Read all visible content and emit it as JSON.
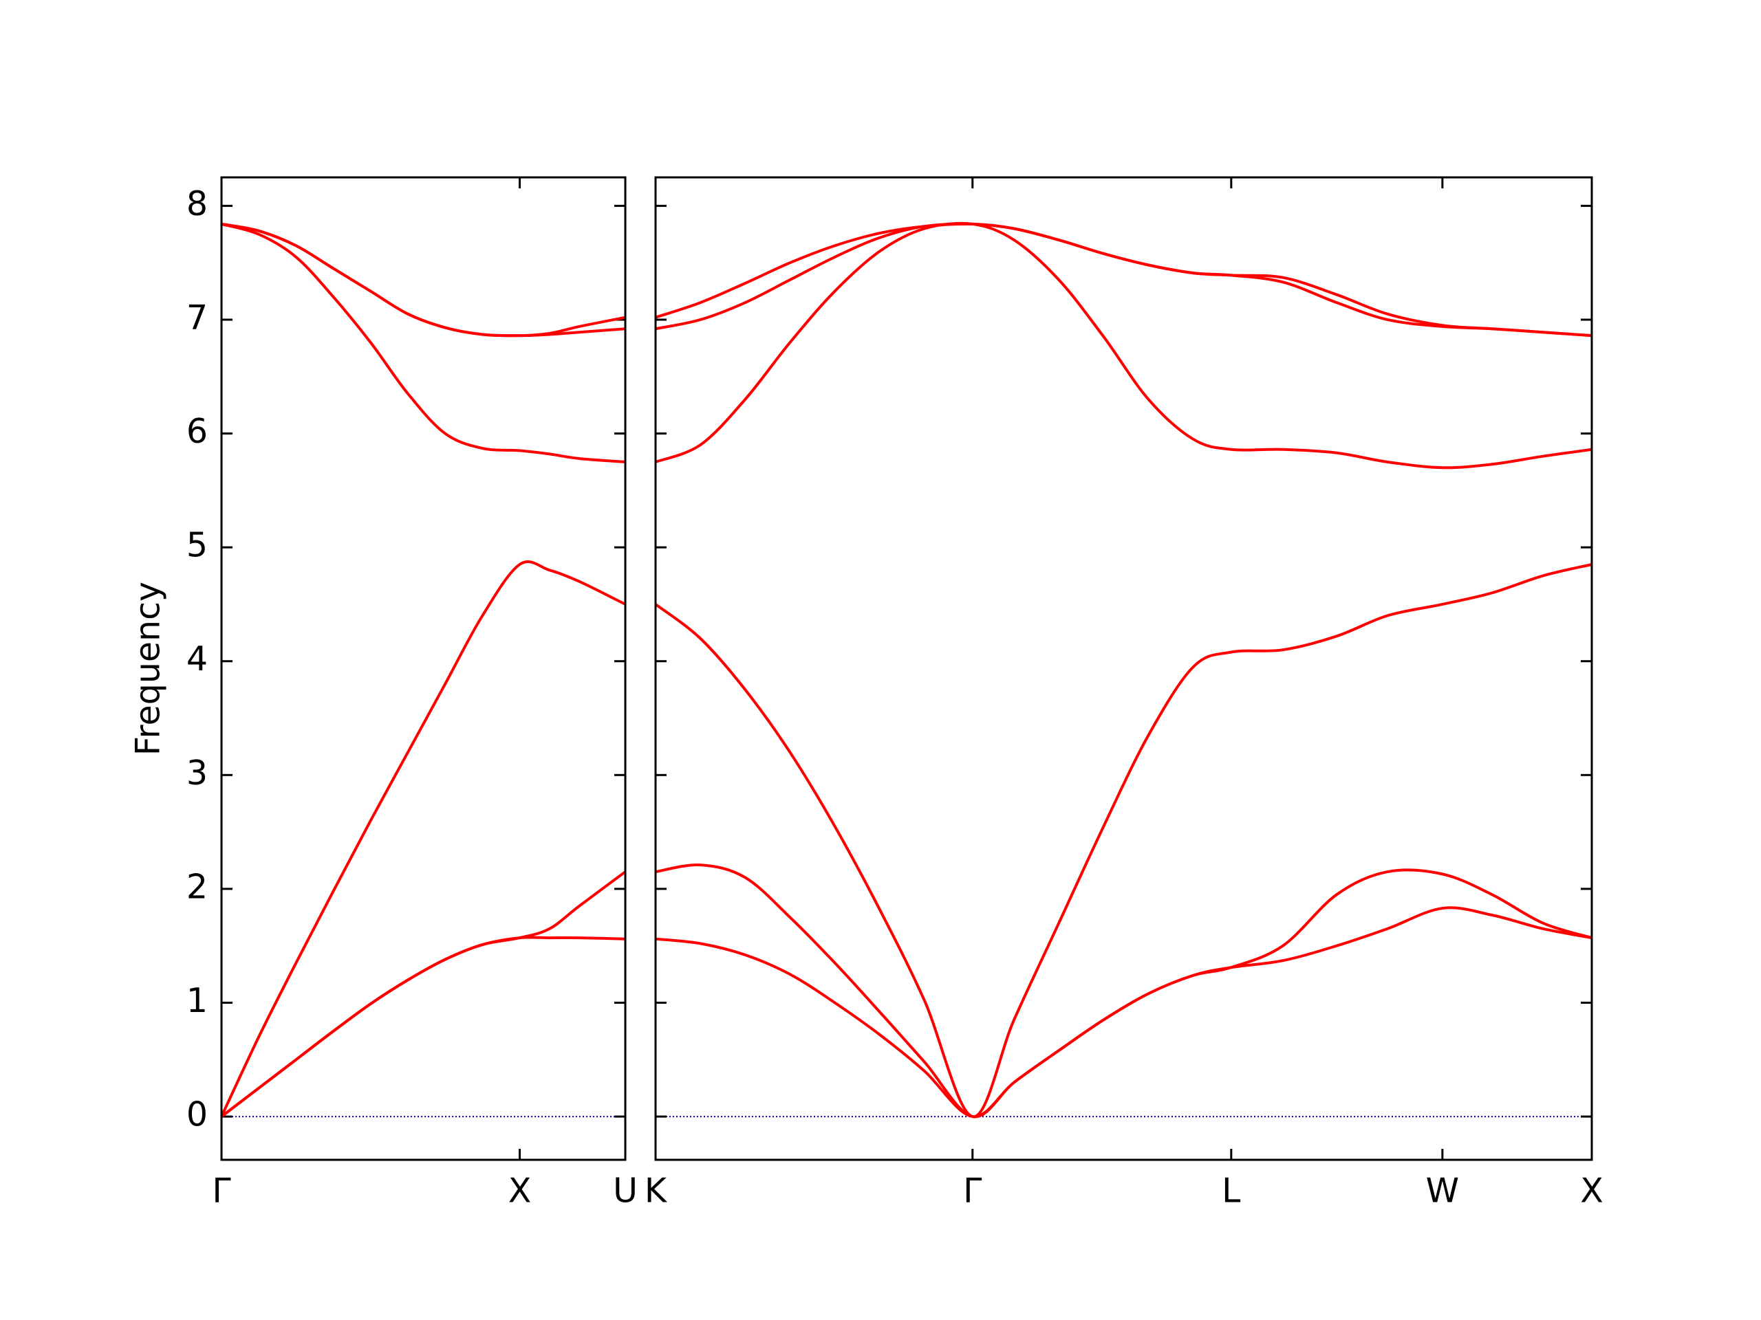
{
  "chart_data": [
    {
      "type": "line",
      "ylabel": "Frequency",
      "x": [
        0,
        0.125,
        0.25,
        0.375,
        0.5,
        0.625,
        0.75,
        0.875,
        1,
        1.1,
        1.2,
        1.354
      ],
      "series": [
        {
          "color": "#ff0000",
          "values": [
            0,
            0.25,
            0.5,
            0.75,
            0.99,
            1.2,
            1.38,
            1.51,
            1.57,
            1.57,
            1.57,
            1.56
          ]
        },
        {
          "color": "#ff0000",
          "values": [
            0,
            0.25,
            0.5,
            0.75,
            0.99,
            1.2,
            1.38,
            1.51,
            1.57,
            1.65,
            1.85,
            2.15
          ]
        },
        {
          "color": "#ff0000",
          "values": [
            0,
            0.7,
            1.35,
            1.98,
            2.6,
            3.2,
            3.8,
            4.4,
            4.85,
            4.8,
            4.7,
            4.5
          ]
        },
        {
          "color": "#ff0000",
          "values": [
            7.84,
            7.75,
            7.55,
            7.2,
            6.8,
            6.35,
            6.0,
            5.87,
            5.85,
            5.82,
            5.78,
            5.75
          ]
        },
        {
          "color": "#ff0000",
          "values": [
            7.84,
            7.78,
            7.65,
            7.45,
            7.25,
            7.05,
            6.93,
            6.87,
            6.86,
            6.87,
            6.89,
            6.92
          ]
        },
        {
          "color": "#ff0000",
          "values": [
            7.84,
            7.78,
            7.65,
            7.45,
            7.25,
            7.05,
            6.93,
            6.87,
            6.86,
            6.88,
            6.94,
            7.02
          ]
        }
      ],
      "xlim": [
        0,
        1.354
      ],
      "xticks": [
        {
          "value": 0,
          "label": "Γ"
        },
        {
          "value": 1,
          "label": "X"
        },
        {
          "value": 1.354,
          "label": "U"
        }
      ],
      "ylim": [
        -0.38,
        8.25
      ],
      "yticks": [
        0,
        1,
        2,
        3,
        4,
        5,
        6,
        7,
        8
      ],
      "ytick_labels": true,
      "zero_line": true,
      "zero_line_color": "#0000aa"
    },
    {
      "type": "line",
      "x": [
        0,
        0.15,
        0.3,
        0.45,
        0.6,
        0.75,
        0.9,
        1.061,
        1.2,
        1.35,
        1.5,
        1.65,
        1.8,
        1.927,
        2.1,
        2.28,
        2.45,
        2.634,
        2.8,
        2.97,
        3.134
      ],
      "series": [
        {
          "color": "#ff0000",
          "values": [
            1.56,
            1.52,
            1.42,
            1.25,
            1.0,
            0.72,
            0.4,
            0,
            0.3,
            0.58,
            0.85,
            1.08,
            1.24,
            1.31,
            1.37,
            1.5,
            1.65,
            1.83,
            1.77,
            1.65,
            1.57
          ]
        },
        {
          "color": "#ff0000",
          "values": [
            2.15,
            2.21,
            2.1,
            1.75,
            1.35,
            0.92,
            0.48,
            0,
            0.3,
            0.58,
            0.85,
            1.08,
            1.24,
            1.31,
            1.5,
            1.95,
            2.15,
            2.13,
            1.95,
            1.7,
            1.57
          ]
        },
        {
          "color": "#ff0000",
          "values": [
            4.5,
            4.2,
            3.75,
            3.2,
            2.55,
            1.82,
            1.02,
            0,
            0.85,
            1.7,
            2.55,
            3.35,
            3.95,
            4.08,
            4.1,
            4.22,
            4.4,
            4.5,
            4.6,
            4.75,
            4.85
          ]
        },
        {
          "color": "#ff0000",
          "values": [
            5.75,
            5.9,
            6.3,
            6.8,
            7.25,
            7.6,
            7.8,
            7.84,
            7.7,
            7.35,
            6.85,
            6.3,
            5.95,
            5.86,
            5.86,
            5.83,
            5.75,
            5.7,
            5.73,
            5.8,
            5.86
          ]
        },
        {
          "color": "#ff0000",
          "values": [
            6.92,
            7.0,
            7.15,
            7.35,
            7.55,
            7.72,
            7.82,
            7.84,
            7.8,
            7.7,
            7.58,
            7.48,
            7.41,
            7.39,
            7.33,
            7.15,
            7.0,
            6.94,
            6.92,
            6.89,
            6.86
          ]
        },
        {
          "color": "#ff0000",
          "values": [
            7.02,
            7.15,
            7.32,
            7.5,
            7.65,
            7.76,
            7.82,
            7.84,
            7.8,
            7.7,
            7.58,
            7.48,
            7.41,
            7.39,
            7.37,
            7.22,
            7.05,
            6.95,
            6.92,
            6.89,
            6.86
          ]
        }
      ],
      "xlim": [
        0,
        3.134
      ],
      "xticks": [
        {
          "value": 0,
          "label": "K"
        },
        {
          "value": 1.061,
          "label": "Γ"
        },
        {
          "value": 1.927,
          "label": "L"
        },
        {
          "value": 2.634,
          "label": "W"
        },
        {
          "value": 3.134,
          "label": "X"
        }
      ],
      "ylim": [
        -0.38,
        8.25
      ],
      "yticks": [
        0,
        1,
        2,
        3,
        4,
        5,
        6,
        7,
        8
      ],
      "ytick_labels": false,
      "zero_line": true,
      "zero_line_color": "#0000aa"
    }
  ]
}
